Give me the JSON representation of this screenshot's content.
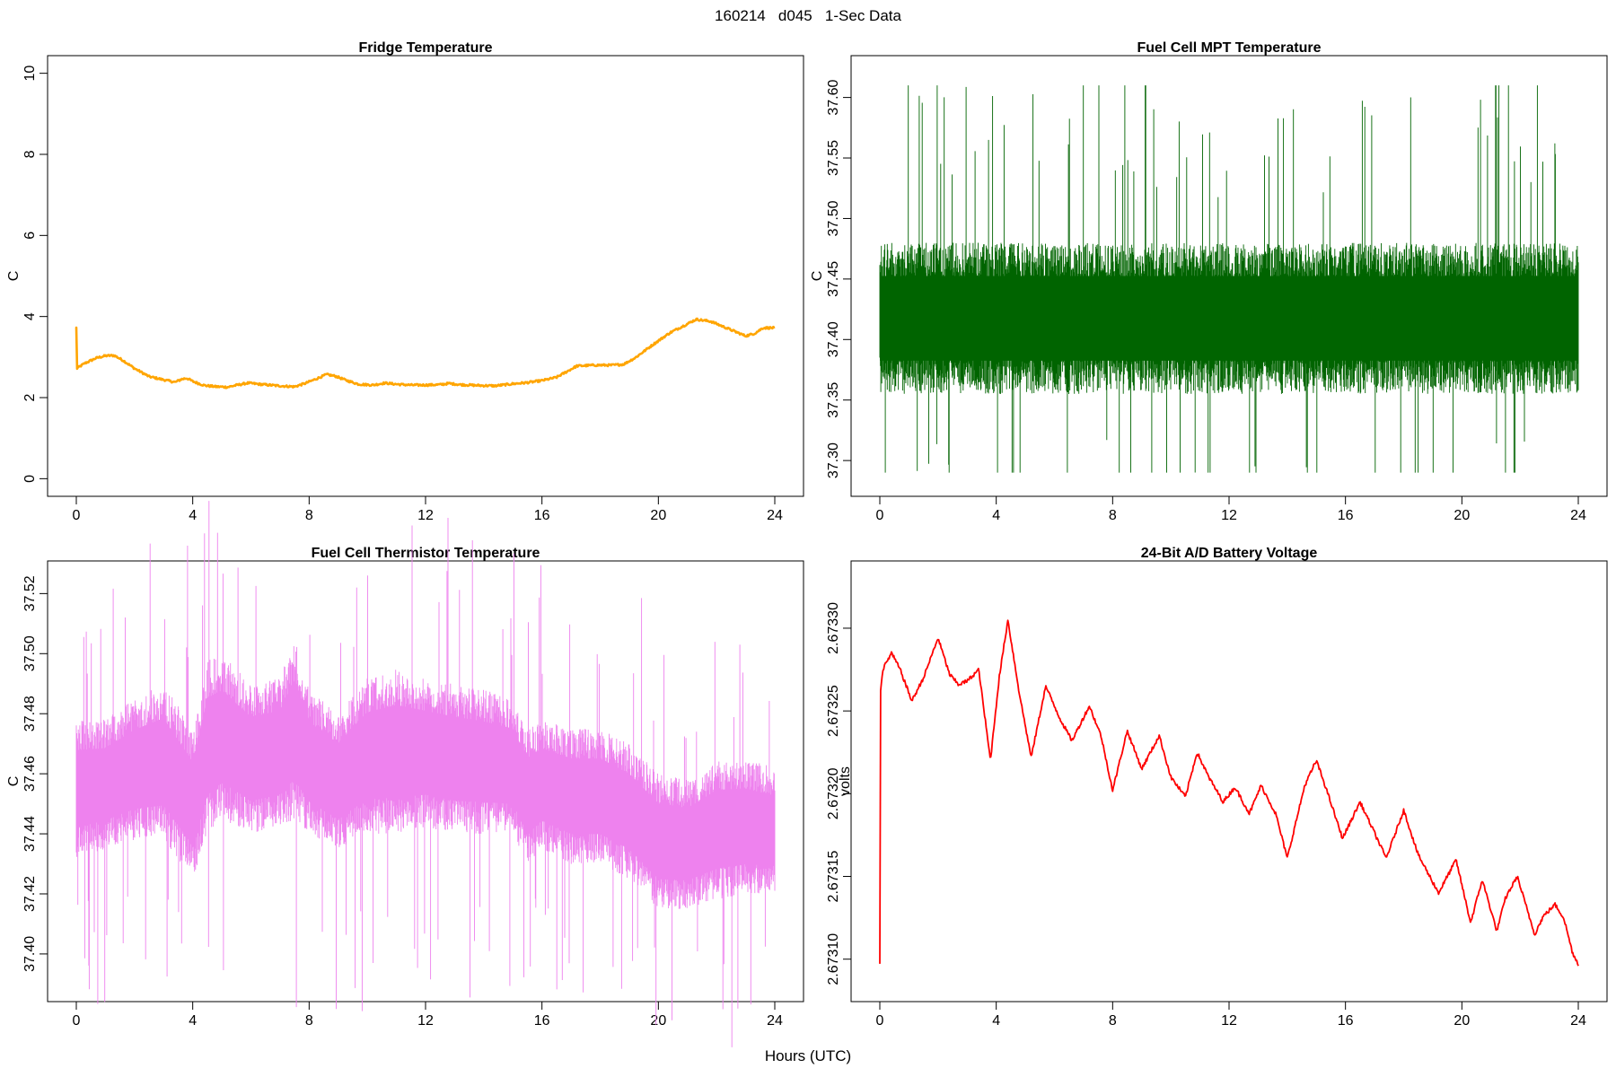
{
  "figure": {
    "title": "160214   d045   1-Sec Data",
    "xlabel": "Hours (UTC)"
  },
  "chart_data": [
    {
      "type": "line",
      "title": "Fridge Temperature",
      "xlabel": "",
      "ylabel": "C",
      "xlim": [
        0,
        24
      ],
      "ylim": [
        0,
        10
      ],
      "xticks": [
        0,
        4,
        8,
        12,
        16,
        20,
        24
      ],
      "yticks": [
        0,
        2,
        4,
        6,
        8,
        10
      ],
      "ytick_labels": [
        "0",
        "2",
        "4",
        "6",
        "8",
        "10"
      ],
      "grid": false,
      "color": "#ffa500",
      "series": [
        {
          "x": [
            0,
            0.02,
            0.3,
            0.7,
            1.0,
            1.3,
            1.6,
            2.0,
            2.5,
            3.0,
            3.4,
            3.6,
            3.8,
            4.0,
            4.4,
            4.8,
            5.2,
            5.6,
            5.9,
            6.3,
            6.8,
            7.2,
            7.5,
            7.9,
            8.3,
            8.6,
            8.9,
            9.3,
            9.7,
            10.2,
            10.6,
            11.0,
            11.5,
            12.0,
            12.5,
            12.8,
            13.2,
            13.8,
            14.4,
            15.0,
            15.5,
            16.0,
            16.5,
            16.8,
            17.2,
            17.8,
            18.4,
            18.8,
            19.2,
            19.8,
            20.4,
            21.0,
            21.3,
            21.8,
            22.4,
            23.0,
            23.3,
            23.6,
            24.0
          ],
          "y": [
            3.72,
            2.72,
            2.85,
            2.98,
            3.03,
            3.04,
            2.92,
            2.72,
            2.52,
            2.44,
            2.38,
            2.45,
            2.48,
            2.4,
            2.3,
            2.27,
            2.26,
            2.32,
            2.36,
            2.33,
            2.3,
            2.28,
            2.27,
            2.36,
            2.48,
            2.57,
            2.53,
            2.42,
            2.33,
            2.31,
            2.36,
            2.33,
            2.31,
            2.31,
            2.32,
            2.35,
            2.32,
            2.3,
            2.29,
            2.34,
            2.37,
            2.42,
            2.5,
            2.62,
            2.78,
            2.8,
            2.8,
            2.82,
            2.98,
            3.3,
            3.6,
            3.82,
            3.93,
            3.88,
            3.7,
            3.52,
            3.58,
            3.72,
            3.72
          ]
        }
      ]
    },
    {
      "type": "line",
      "title": "Fuel Cell MPT Temperature",
      "xlabel": "",
      "ylabel": "C",
      "xlim": [
        0,
        24
      ],
      "ylim": [
        37.285,
        37.62
      ],
      "xticks": [
        0,
        4,
        8,
        12,
        16,
        20,
        24
      ],
      "yticks": [
        37.3,
        37.35,
        37.4,
        37.45,
        37.5,
        37.55,
        37.6
      ],
      "ytick_labels": [
        "37.30",
        "37.35",
        "37.40",
        "37.45",
        "37.50",
        "37.55",
        "37.60"
      ],
      "grid": false,
      "color": "#006400",
      "series": [
        {
          "x": [
            0,
            4,
            8,
            12,
            16,
            20,
            24
          ],
          "y_mean": [
            37.42,
            37.42,
            37.42,
            37.42,
            37.42,
            37.42,
            37.42
          ],
          "y_band_low": [
            37.355,
            37.355,
            37.355,
            37.355,
            37.355,
            37.355,
            37.355
          ],
          "y_band_high": [
            37.48,
            37.48,
            37.48,
            37.48,
            37.48,
            37.48,
            37.48
          ],
          "y_min_observed": 37.29,
          "y_max_observed": 37.61
        }
      ]
    },
    {
      "type": "line",
      "title": "Fuel Cell Thermistor Temperature",
      "xlabel": "",
      "ylabel": "C",
      "xlim": [
        0,
        24
      ],
      "ylim": [
        37.39,
        37.525
      ],
      "xticks": [
        0,
        4,
        8,
        12,
        16,
        20,
        24
      ],
      "yticks": [
        37.4,
        37.42,
        37.44,
        37.46,
        37.48,
        37.5,
        37.52
      ],
      "ytick_labels": [
        "37.40",
        "37.42",
        "37.44",
        "37.46",
        "37.48",
        "37.50",
        "37.52"
      ],
      "grid": false,
      "color": "#ee82ee",
      "series": [
        {
          "x": [
            0,
            1,
            2,
            3,
            4,
            4.5,
            5,
            6,
            7,
            7.5,
            8,
            9,
            10,
            11,
            12,
            13,
            14,
            15,
            15.5,
            16,
            17,
            18,
            19,
            20,
            21,
            22,
            23,
            24
          ],
          "y_band_low": [
            37.432,
            37.435,
            37.438,
            37.438,
            37.425,
            37.44,
            37.445,
            37.44,
            37.442,
            37.445,
            37.44,
            37.435,
            37.44,
            37.44,
            37.442,
            37.44,
            37.44,
            37.44,
            37.43,
            37.435,
            37.43,
            37.43,
            37.425,
            37.415,
            37.415,
            37.418,
            37.42,
            37.42
          ],
          "y_band_high": [
            37.478,
            37.478,
            37.485,
            37.49,
            37.475,
            37.498,
            37.5,
            37.49,
            37.492,
            37.505,
            37.488,
            37.48,
            37.492,
            37.495,
            37.492,
            37.49,
            37.488,
            37.485,
            37.475,
            37.478,
            37.475,
            37.475,
            37.47,
            37.46,
            37.458,
            37.465,
            37.465,
            37.462
          ]
        }
      ]
    },
    {
      "type": "line",
      "title": "24-Bit A/D Battery Voltage",
      "xlabel": "",
      "ylabel": "volts",
      "xlim": [
        0,
        24
      ],
      "ylim": [
        2.673085,
        2.67333
      ],
      "xticks": [
        0,
        4,
        8,
        12,
        16,
        20,
        24
      ],
      "yticks": [
        2.6731,
        2.67315,
        2.6732,
        2.67325,
        2.6733
      ],
      "ytick_labels": [
        "2.67310",
        "2.67315",
        "2.67320",
        "2.67325",
        "2.67330"
      ],
      "grid": false,
      "color": "#ff0000",
      "series": [
        {
          "x": [
            0,
            0.02,
            0.1,
            0.4,
            0.7,
            1.1,
            1.5,
            2.0,
            2.4,
            2.7,
            3.0,
            3.4,
            3.8,
            4.1,
            4.4,
            4.8,
            5.2,
            5.7,
            6.2,
            6.6,
            7.2,
            7.6,
            8.0,
            8.5,
            9.0,
            9.6,
            10.0,
            10.5,
            10.9,
            11.3,
            11.8,
            12.2,
            12.7,
            13.1,
            13.6,
            14.0,
            14.6,
            15.0,
            15.3,
            15.9,
            16.5,
            16.9,
            17.4,
            18.0,
            18.5,
            19.2,
            19.8,
            20.3,
            20.7,
            21.2,
            21.5,
            21.9,
            22.5,
            22.8,
            23.2,
            23.5,
            23.8,
            24.0
          ],
          "y": [
            2.673098,
            2.673262,
            2.673275,
            2.673285,
            2.673275,
            2.673256,
            2.67327,
            2.673294,
            2.673272,
            2.673266,
            2.673268,
            2.673275,
            2.67322,
            2.67327,
            2.673305,
            2.67326,
            2.673222,
            2.673265,
            2.673245,
            2.673232,
            2.673253,
            2.673235,
            2.673202,
            2.673238,
            2.673215,
            2.673235,
            2.67321,
            2.673198,
            2.673225,
            2.67321,
            2.673195,
            2.673204,
            2.673188,
            2.673205,
            2.673188,
            2.673161,
            2.673205,
            2.67322,
            2.673205,
            2.673173,
            2.673195,
            2.67318,
            2.673161,
            2.67319,
            2.673163,
            2.67314,
            2.67316,
            2.673122,
            2.673148,
            2.673117,
            2.673137,
            2.67315,
            2.673115,
            2.673126,
            2.673133,
            2.673125,
            2.673104,
            2.673097
          ]
        }
      ]
    }
  ]
}
